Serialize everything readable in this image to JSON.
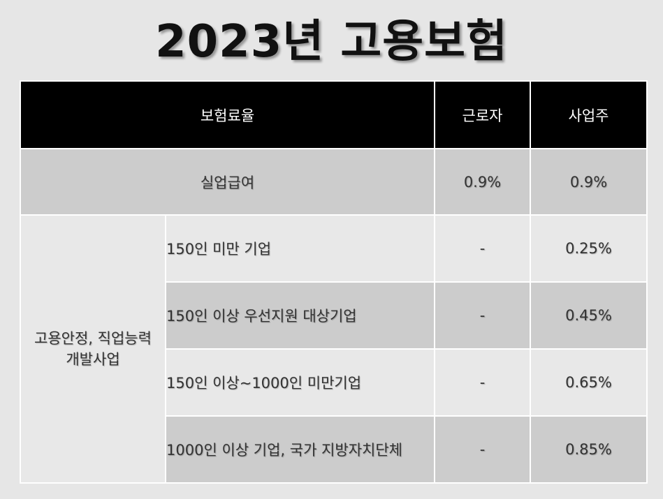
{
  "title": "2023년 고용보험",
  "header": {
    "col_rate": "보험료율",
    "col_worker": "근로자",
    "col_employer": "사업주"
  },
  "unemployment": {
    "label": "실업급여",
    "worker": "0.9%",
    "employer": "0.9%"
  },
  "group": {
    "label_line1": "고용안정, 직업능력",
    "label_line2": "개발사업",
    "rows": [
      {
        "label": "150인 미만 기업",
        "worker": "-",
        "employer": "0.25%"
      },
      {
        "label": "150인 이상 우선지원 대상기업",
        "worker": "-",
        "employer": "0.45%"
      },
      {
        "label": "150인 이상~1000인 미만기업",
        "worker": "-",
        "employer": "0.65%"
      },
      {
        "label": "1000인 이상 기업, 국가 지방자치단체",
        "worker": "-",
        "employer": "0.85%"
      }
    ]
  }
}
